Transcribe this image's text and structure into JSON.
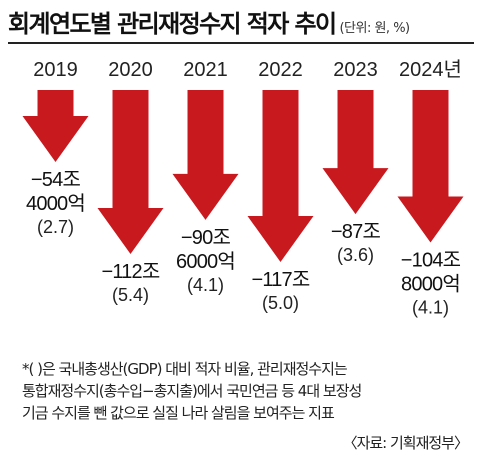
{
  "header": {
    "title": "회계연도별 관리재정수지 적자 추이",
    "unit": "(단위: 원, %)"
  },
  "chart_data": {
    "type": "bar",
    "orientation": "downward-arrows",
    "title": "회계연도별 관리재정수지 적자 추이",
    "unit": "(단위: 원, %)",
    "categories": [
      "2019",
      "2020",
      "2021",
      "2022",
      "2023",
      "2024년"
    ],
    "series": [
      {
        "values": [
          -54.4,
          -112.0,
          -90.6,
          -117.0,
          -87.0,
          -104.8
        ],
        "labels": [
          [
            "−54조",
            "4000억"
          ],
          [
            "−112조"
          ],
          [
            "−90조",
            "6000억"
          ],
          [
            "−117조"
          ],
          [
            "−87조"
          ],
          [
            "−104조",
            "8000억"
          ]
        ],
        "ratios": [
          "(2.7)",
          "(5.4)",
          "(4.1)",
          "(5.0)",
          "(3.6)",
          "(4.1)"
        ]
      }
    ],
    "value_unit": "조 원",
    "arrow_color": "#c8191f",
    "grid": false
  },
  "notes": {
    "lines": [
      "*( )은 국내총생산(GDP) 대비 적자 비율, 관리재정수지는",
      "통합재정수지(총수입−총지출)에서 국민연금 등 4대 보장성",
      "기금 수지를 뺀 값으로 실질 나라 살림을 보여주는 지표"
    ],
    "source": "〈자료: 기획재정부〉"
  }
}
